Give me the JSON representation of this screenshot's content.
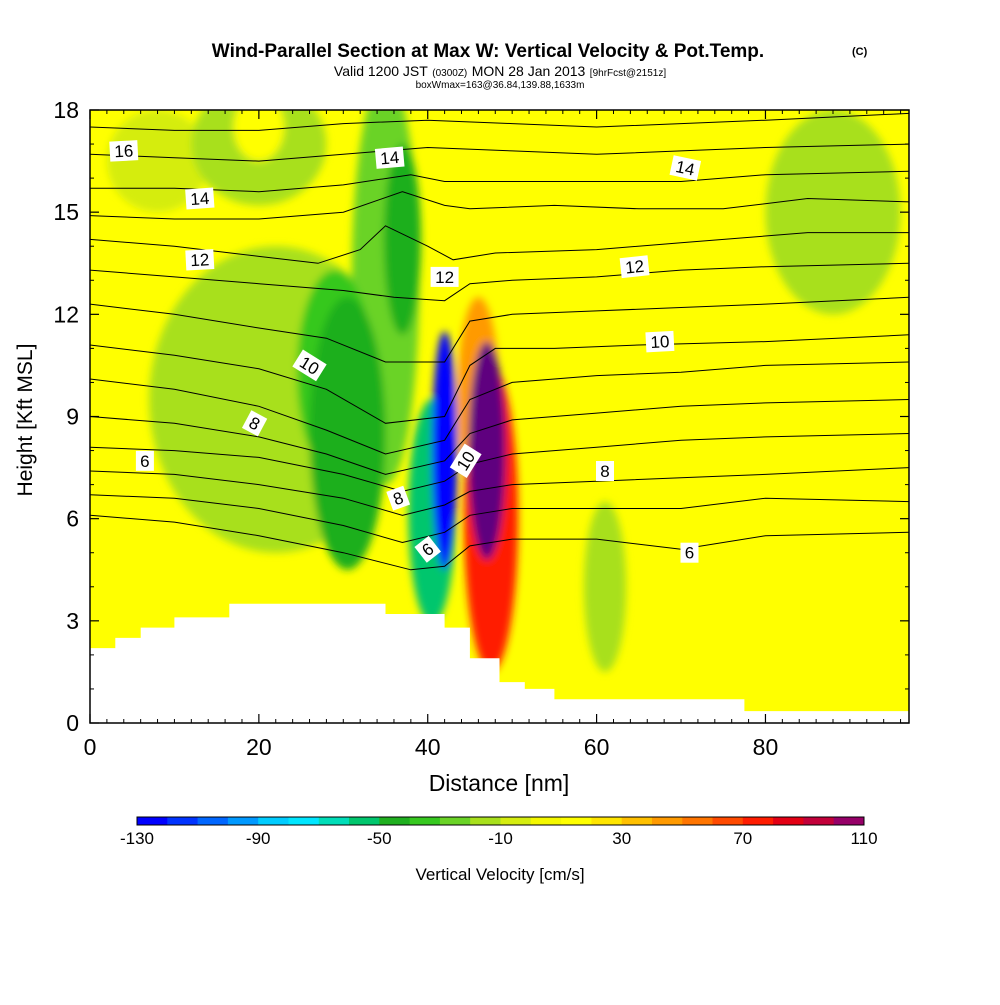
{
  "chart_data": {
    "type": "heatmap",
    "title": "Wind-Parallel Section at Max W: Vertical Velocity & Pot.Temp.",
    "title_mark": "(C)",
    "subtitle": {
      "part1": "Valid 1200 JST",
      "part2": "(0300Z)",
      "part3": "MON 28 Jan 2013",
      "part4": "[9hrFcst@2151z]"
    },
    "subsubtitle": "boxWmax=163@36.84,139.88,1633m",
    "xlabel": "Distance [nm]",
    "ylabel": "Height [Kft MSL]",
    "xlim": [
      0,
      97
    ],
    "ylim": [
      0,
      18
    ],
    "xticks": [
      0,
      20,
      40,
      60,
      80
    ],
    "yticks": [
      0,
      3,
      6,
      9,
      12,
      15,
      18
    ],
    "terrain": [
      [
        0,
        2.2
      ],
      [
        3,
        2.2
      ],
      [
        3,
        2.5
      ],
      [
        6,
        2.5
      ],
      [
        6,
        2.8
      ],
      [
        10,
        2.8
      ],
      [
        10,
        3.1
      ],
      [
        16.5,
        3.1
      ],
      [
        16.5,
        3.5
      ],
      [
        35,
        3.5
      ],
      [
        35,
        3.2
      ],
      [
        42,
        3.2
      ],
      [
        42,
        2.8
      ],
      [
        45,
        2.8
      ],
      [
        45,
        1.9
      ],
      [
        48.5,
        1.9
      ],
      [
        48.5,
        1.2
      ],
      [
        51.5,
        1.2
      ],
      [
        51.5,
        1.0
      ],
      [
        55,
        1.0
      ],
      [
        55,
        0.7
      ],
      [
        77.5,
        0.7
      ],
      [
        77.5,
        0.35
      ],
      [
        97,
        0.35
      ]
    ],
    "w_features": [
      {
        "x": 42,
        "y": 8,
        "rx": 1.5,
        "ry": 3.5,
        "w": -130
      },
      {
        "x": 40.5,
        "y": 6.2,
        "rx": 2.8,
        "ry": 3.3,
        "w": -60
      },
      {
        "x": 30.5,
        "y": 8.5,
        "rx": 4.5,
        "ry": 4,
        "w": -50
      },
      {
        "x": 29,
        "y": 10.3,
        "rx": 4.5,
        "ry": 3,
        "w": -35
      },
      {
        "x": 37,
        "y": 14.2,
        "rx": 2.2,
        "ry": 2.8,
        "w": -45
      },
      {
        "x": 35,
        "y": 13,
        "rx": 4,
        "ry": 6,
        "w": -25
      },
      {
        "x": 22,
        "y": 9.5,
        "rx": 15,
        "ry": 4.5,
        "w": -20
      },
      {
        "x": 61,
        "y": 4,
        "rx": 2.5,
        "ry": 2.5,
        "w": -20
      },
      {
        "x": 88,
        "y": 15,
        "rx": 8,
        "ry": 3,
        "w": -15
      },
      {
        "x": 20,
        "y": 17,
        "rx": 8,
        "ry": 1.8,
        "w": -15
      },
      {
        "x": 8,
        "y": 16.5,
        "rx": 6,
        "ry": 1.5,
        "w": -10
      },
      {
        "x": 47,
        "y": 8,
        "rx": 2.2,
        "ry": 3.2,
        "w": 110
      },
      {
        "x": 47.5,
        "y": 6,
        "rx": 3.2,
        "ry": 4.5,
        "w": 70
      },
      {
        "x": 46,
        "y": 9.5,
        "rx": 2.5,
        "ry": 3,
        "w": 45
      },
      {
        "x": 86,
        "y": 7,
        "rx": 4,
        "ry": 2.5,
        "w": 12
      },
      {
        "x": 3,
        "y": 3,
        "rx": 4,
        "ry": 1.2,
        "w": 15
      },
      {
        "x": 20,
        "y": 17.5,
        "rx": 3,
        "ry": 1,
        "w": 15
      },
      {
        "x": 93,
        "y": 1.5,
        "rx": 4,
        "ry": 1.2,
        "w": 10
      }
    ],
    "colorbar": {
      "label": "Vertical Velocity [cm/s]",
      "min": -130,
      "max": 110,
      "step": 10,
      "tick_labels": [
        "-130",
        "-90",
        "-50",
        "-10",
        "30",
        "70",
        "110"
      ],
      "colors": [
        "#0000ff",
        "#0033ff",
        "#0066ff",
        "#0099ff",
        "#00ccff",
        "#00e6ff",
        "#00ddb8",
        "#00c66d",
        "#1faf1f",
        "#36c81f",
        "#6ad326",
        "#a8e01c",
        "#d5ed10",
        "#f4f800",
        "#ffff00",
        "#ffe500",
        "#ffc000",
        "#ff9a00",
        "#ff7500",
        "#ff4a00",
        "#ff1c00",
        "#e30014",
        "#c2003a",
        "#960068",
        "#5e007f"
      ]
    },
    "theta_contours": [
      {
        "label": "6",
        "pts": [
          [
            0,
            6.1
          ],
          [
            10,
            5.9
          ],
          [
            20,
            5.5
          ],
          [
            30,
            5.0
          ],
          [
            38,
            4.5
          ],
          [
            42,
            4.6
          ],
          [
            45,
            5.2
          ],
          [
            50,
            5.4
          ],
          [
            60,
            5.4
          ],
          [
            70,
            5.1
          ],
          [
            80,
            5.5
          ],
          [
            97,
            5.6
          ]
        ]
      },
      {
        "label": "",
        "pts": [
          [
            0,
            6.7
          ],
          [
            10,
            6.6
          ],
          [
            20,
            6.3
          ],
          [
            30,
            5.8
          ],
          [
            37,
            5.3
          ],
          [
            42,
            5.6
          ],
          [
            45,
            6.1
          ],
          [
            50,
            6.3
          ],
          [
            60,
            6.3
          ],
          [
            70,
            6.3
          ],
          [
            80,
            6.6
          ],
          [
            97,
            6.5
          ]
        ]
      },
      {
        "label": "",
        "pts": [
          [
            0,
            7.4
          ],
          [
            10,
            7.3
          ],
          [
            20,
            7.0
          ],
          [
            30,
            6.6
          ],
          [
            37,
            6.1
          ],
          [
            42,
            6.4
          ],
          [
            45,
            6.8
          ],
          [
            50,
            7.0
          ],
          [
            60,
            7.1
          ],
          [
            70,
            7.2
          ],
          [
            80,
            7.3
          ],
          [
            97,
            7.5
          ]
        ]
      },
      {
        "label": "8",
        "pts": [
          [
            0,
            8.1
          ],
          [
            10,
            8.0
          ],
          [
            20,
            7.8
          ],
          [
            30,
            7.3
          ],
          [
            37,
            6.8
          ],
          [
            42,
            7.1
          ],
          [
            45,
            7.6
          ],
          [
            50,
            7.9
          ],
          [
            60,
            8.1
          ],
          [
            70,
            8.3
          ],
          [
            80,
            8.4
          ],
          [
            97,
            8.5
          ]
        ]
      },
      {
        "label": "",
        "pts": [
          [
            0,
            9.0
          ],
          [
            10,
            8.8
          ],
          [
            20,
            8.4
          ],
          [
            28,
            7.9
          ],
          [
            35,
            7.3
          ],
          [
            42,
            7.7
          ],
          [
            45,
            8.5
          ],
          [
            50,
            8.9
          ],
          [
            60,
            9.1
          ],
          [
            70,
            9.3
          ],
          [
            80,
            9.4
          ],
          [
            97,
            9.5
          ]
        ]
      },
      {
        "label": "",
        "pts": [
          [
            0,
            10.1
          ],
          [
            10,
            9.8
          ],
          [
            20,
            9.3
          ],
          [
            28,
            8.6
          ],
          [
            35,
            7.9
          ],
          [
            42,
            8.3
          ],
          [
            45,
            9.5
          ],
          [
            50,
            10.0
          ],
          [
            60,
            10.2
          ],
          [
            70,
            10.3
          ],
          [
            80,
            10.5
          ],
          [
            97,
            10.6
          ]
        ]
      },
      {
        "label": "10",
        "pts": [
          [
            0,
            11.1
          ],
          [
            10,
            10.8
          ],
          [
            20,
            10.4
          ],
          [
            28,
            9.8
          ],
          [
            35,
            8.8
          ],
          [
            42,
            9.0
          ],
          [
            45,
            10.5
          ],
          [
            48,
            11.0
          ],
          [
            55,
            11.0
          ],
          [
            65,
            11.1
          ],
          [
            80,
            11.2
          ],
          [
            97,
            11.4
          ]
        ]
      },
      {
        "label": "",
        "pts": [
          [
            0,
            12.3
          ],
          [
            10,
            12.0
          ],
          [
            20,
            11.6
          ],
          [
            28,
            11.3
          ],
          [
            35,
            10.6
          ],
          [
            42,
            10.6
          ],
          [
            45,
            11.8
          ],
          [
            50,
            12.0
          ],
          [
            60,
            12.1
          ],
          [
            70,
            12.2
          ],
          [
            80,
            12.3
          ],
          [
            97,
            12.5
          ]
        ]
      },
      {
        "label": "12",
        "pts": [
          [
            0,
            13.3
          ],
          [
            10,
            13.1
          ],
          [
            20,
            12.9
          ],
          [
            30,
            12.7
          ],
          [
            36,
            12.5
          ],
          [
            42,
            12.4
          ],
          [
            45,
            12.9
          ],
          [
            50,
            13.0
          ],
          [
            60,
            13.1
          ],
          [
            70,
            13.3
          ],
          [
            80,
            13.4
          ],
          [
            97,
            13.5
          ]
        ]
      },
      {
        "label": "",
        "pts": [
          [
            0,
            14.2
          ],
          [
            10,
            14.0
          ],
          [
            20,
            13.7
          ],
          [
            27,
            13.5
          ],
          [
            32,
            13.9
          ],
          [
            35,
            14.6
          ],
          [
            40,
            14.0
          ],
          [
            43,
            13.6
          ],
          [
            48,
            13.8
          ],
          [
            60,
            13.9
          ],
          [
            70,
            14.1
          ],
          [
            85,
            14.4
          ],
          [
            97,
            14.4
          ]
        ]
      },
      {
        "label": "14",
        "pts": [
          [
            0,
            14.9
          ],
          [
            10,
            14.8
          ],
          [
            20,
            14.8
          ],
          [
            30,
            15.0
          ],
          [
            37,
            15.6
          ],
          [
            42,
            15.2
          ],
          [
            45,
            15.1
          ],
          [
            55,
            15.2
          ],
          [
            65,
            15.1
          ],
          [
            75,
            15.1
          ],
          [
            85,
            15.4
          ],
          [
            97,
            15.3
          ]
        ]
      },
      {
        "label": "",
        "pts": [
          [
            0,
            15.7
          ],
          [
            10,
            15.7
          ],
          [
            20,
            15.6
          ],
          [
            30,
            15.8
          ],
          [
            38,
            16.1
          ],
          [
            42,
            15.9
          ],
          [
            50,
            15.9
          ],
          [
            60,
            15.9
          ],
          [
            70,
            15.9
          ],
          [
            80,
            16.1
          ],
          [
            97,
            16.2
          ]
        ]
      },
      {
        "label": "16",
        "pts": [
          [
            0,
            16.7
          ],
          [
            10,
            16.6
          ],
          [
            20,
            16.5
          ],
          [
            30,
            16.7
          ],
          [
            40,
            16.9
          ],
          [
            50,
            16.8
          ],
          [
            60,
            16.7
          ],
          [
            70,
            16.8
          ],
          [
            80,
            16.9
          ],
          [
            97,
            17.0
          ]
        ]
      },
      {
        "label": "",
        "pts": [
          [
            0,
            17.5
          ],
          [
            10,
            17.4
          ],
          [
            20,
            17.4
          ],
          [
            30,
            17.6
          ],
          [
            40,
            17.7
          ],
          [
            50,
            17.6
          ],
          [
            60,
            17.5
          ],
          [
            70,
            17.6
          ],
          [
            80,
            17.7
          ],
          [
            97,
            17.9
          ]
        ]
      }
    ],
    "contour_labels": [
      {
        "text": "16",
        "x": 4,
        "y": 16.8,
        "angle": -3
      },
      {
        "text": "14",
        "x": 13,
        "y": 15.4,
        "angle": -4
      },
      {
        "text": "14",
        "x": 35.5,
        "y": 16.6,
        "angle": -5
      },
      {
        "text": "14",
        "x": 70.5,
        "y": 16.3,
        "angle": 12
      },
      {
        "text": "12",
        "x": 13,
        "y": 13.6,
        "angle": -3
      },
      {
        "text": "12",
        "x": 42,
        "y": 13.1,
        "angle": 0
      },
      {
        "text": "12",
        "x": 64.5,
        "y": 13.4,
        "angle": -6
      },
      {
        "text": "10",
        "x": 26,
        "y": 10.5,
        "angle": 32
      },
      {
        "text": "10",
        "x": 67.5,
        "y": 11.2,
        "angle": -3
      },
      {
        "text": "10",
        "x": 44.5,
        "y": 7.7,
        "angle": -58
      },
      {
        "text": "8",
        "x": 19.5,
        "y": 8.8,
        "angle": 28
      },
      {
        "text": "8",
        "x": 36.5,
        "y": 6.6,
        "angle": -20
      },
      {
        "text": "8",
        "x": 61,
        "y": 7.4,
        "angle": 0
      },
      {
        "text": "6",
        "x": 6.5,
        "y": 7.7,
        "angle": 0
      },
      {
        "text": "6",
        "x": 40,
        "y": 5.1,
        "angle": -38
      },
      {
        "text": "6",
        "x": 71,
        "y": 5.0,
        "angle": 0
      }
    ]
  }
}
